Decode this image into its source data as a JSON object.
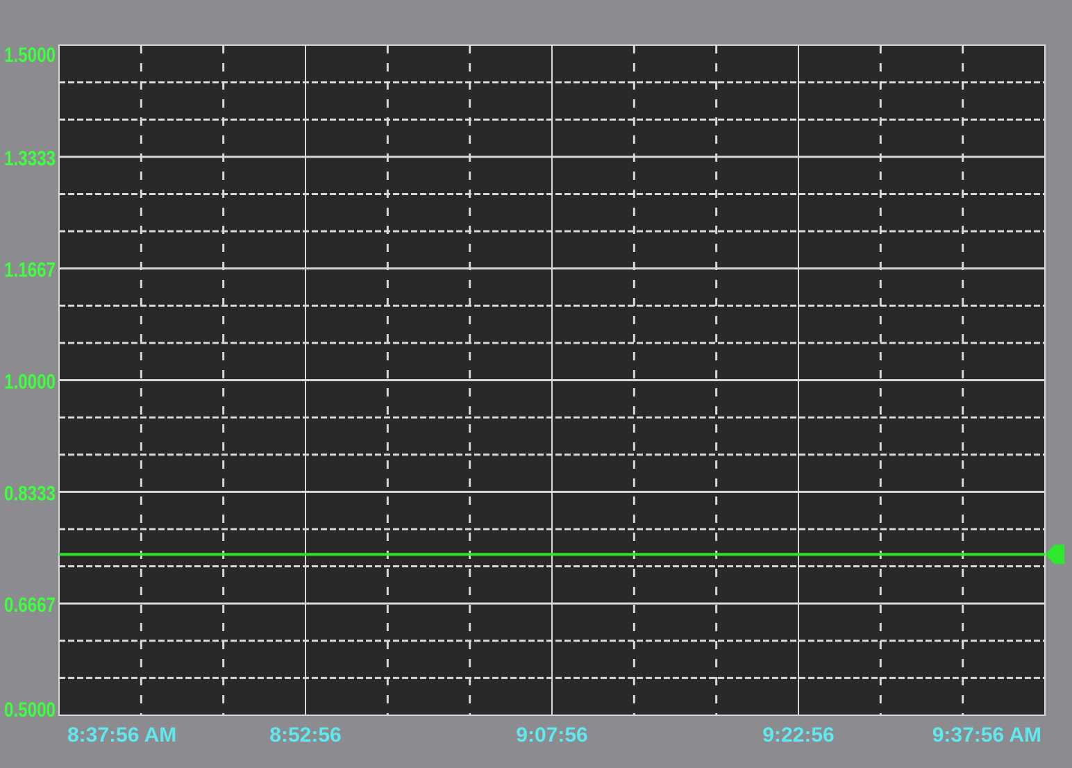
{
  "chart_data": {
    "type": "line",
    "title": "",
    "xlabel": "",
    "ylabel": "",
    "ylim": [
      0.5,
      1.5
    ],
    "y_ticks": [
      "1.5000",
      "1.3333",
      "1.1667",
      "1.0000",
      "0.8333",
      "0.6667",
      "0.5000"
    ],
    "x_ticks": [
      "8:37:56 AM",
      "8:52:56",
      "9:07:56",
      "9:22:56",
      "9:37:56 AM"
    ],
    "xlim": [
      "8:37:56 AM",
      "9:37:56 AM"
    ],
    "grid": true,
    "series": [
      {
        "color": "#2ee82e",
        "x": [
          "8:37:56 AM",
          "9:37:56 AM"
        ],
        "values": [
          0.74,
          0.74
        ]
      }
    ],
    "colors": {
      "background": "#8c8b90",
      "plot": "#2a2828",
      "grid": "#d8d8d8",
      "y_labels": "#3dff3d",
      "x_labels": "#5fe8ee"
    }
  }
}
